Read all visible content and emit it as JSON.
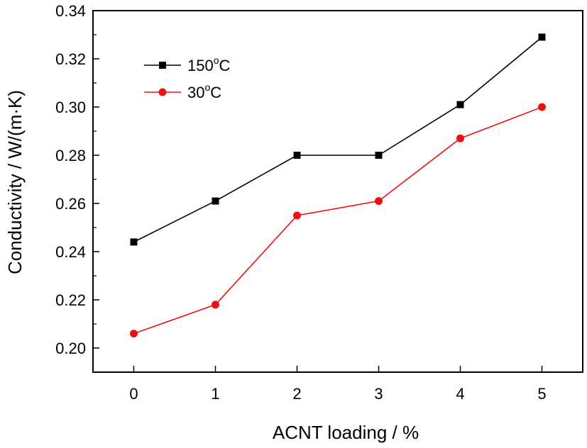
{
  "chart_data": {
    "type": "line",
    "xlabel": "ACNT loading / %",
    "ylabel": "Conductivity / W/(m·K)",
    "x": [
      0,
      1,
      2,
      3,
      4,
      5
    ],
    "x_ticks": [
      "0",
      "1",
      "2",
      "3",
      "4",
      "5"
    ],
    "xlim": [
      -0.5,
      5.5
    ],
    "ylim": [
      0.19,
      0.34
    ],
    "y_ticks": [
      "0.20",
      "0.22",
      "0.24",
      "0.26",
      "0.28",
      "0.30",
      "0.32",
      "0.34"
    ],
    "y_tick_values": [
      0.2,
      0.22,
      0.24,
      0.26,
      0.28,
      0.3,
      0.32,
      0.34
    ],
    "legend_placement": "top-left",
    "grid": false,
    "series": [
      {
        "name": "150",
        "name_sup": "o",
        "name_suffix": "C",
        "color": "#000000",
        "marker": "square",
        "values": [
          0.244,
          0.261,
          0.28,
          0.28,
          0.301,
          0.329
        ]
      },
      {
        "name": "30",
        "name_sup": "o",
        "name_suffix": "C",
        "color": "#ee1111",
        "marker": "circle",
        "values": [
          0.206,
          0.218,
          0.255,
          0.261,
          0.287,
          0.3
        ]
      }
    ]
  }
}
